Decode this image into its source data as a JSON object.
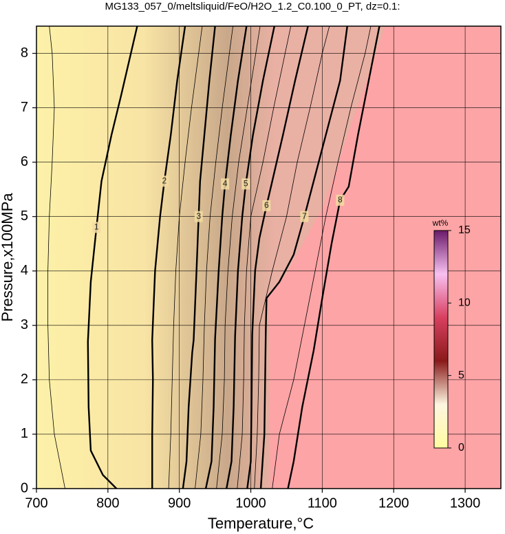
{
  "chart_data": {
    "type": "contour",
    "title": "MG133_057_0/meltsliquid/FeO/H2O_1.2_C0.100_0_PT, dz=0.1:",
    "x_label": "Temperature,°C",
    "y_label": "Pressure,x100MPa",
    "xlim": [
      700,
      1350
    ],
    "ylim": [
      0,
      8.5
    ],
    "xticks": [
      700,
      800,
      900,
      1000,
      1100,
      1200,
      1300
    ],
    "yticks": [
      0,
      1,
      2,
      3,
      4,
      5,
      6,
      7,
      8
    ],
    "grid": true,
    "line_color": "#000000",
    "contours": [
      {
        "level": 1,
        "x": [
          812,
          793,
          776,
          773,
          772,
          776,
          784,
          791,
          805,
          818,
          841
        ],
        "y": [
          0,
          0.25,
          0.7,
          1.5,
          2.7,
          3.8,
          4.8,
          5.65,
          6.5,
          7.2,
          8.5
        ]
      },
      {
        "level": 2,
        "x": [
          862,
          862,
          863,
          862,
          866,
          873,
          879,
          888,
          897,
          908
        ],
        "y": [
          0,
          1,
          2,
          2.73,
          4,
          5,
          5.65,
          6.5,
          7.5,
          8.5
        ]
      },
      {
        "level": 3,
        "x": [
          905,
          910,
          913,
          918,
          920,
          924,
          927,
          929,
          935,
          942,
          950
        ],
        "y": [
          0,
          0.5,
          1.5,
          2.5,
          2.73,
          4,
          5,
          5.65,
          6.5,
          7.5,
          8.5
        ]
      },
      {
        "level": 4,
        "x": [
          937,
          945,
          948,
          950,
          955,
          960,
          964,
          972,
          982,
          994
        ],
        "y": [
          0,
          0.5,
          1.5,
          2.75,
          4,
          5,
          5.6,
          6.5,
          7.5,
          8.5
        ]
      },
      {
        "level": 5,
        "x": [
          966,
          973,
          976,
          978,
          982,
          988,
          993,
          1003,
          1017,
          1033
        ],
        "y": [
          0,
          0.5,
          1.5,
          2.8,
          4,
          5,
          5.6,
          6.5,
          7.5,
          8.5
        ]
      },
      {
        "level": 6,
        "x": [
          995,
          1000,
          1001,
          1002,
          1006,
          1012,
          1022,
          1030,
          1045,
          1062,
          1080
        ],
        "y": [
          0,
          0.5,
          1.5,
          2.83,
          4,
          4.6,
          5.2,
          5.65,
          6.5,
          7.5,
          8.5
        ]
      },
      {
        "level": 7,
        "x": [
          1014,
          1019,
          1021,
          1022,
          1040,
          1060,
          1075,
          1086,
          1105,
          1125,
          1135
        ],
        "y": [
          0,
          1,
          2.92,
          3.5,
          3.8,
          4.3,
          5,
          5.55,
          6.5,
          7.5,
          8.5
        ]
      },
      {
        "level": 8,
        "x": [
          1052,
          1060,
          1072,
          1088,
          1100,
          1113,
          1125,
          1137,
          1150,
          1165,
          1180
        ],
        "y": [
          0,
          0.5,
          1.5,
          2.54,
          3.5,
          4.5,
          5.3,
          5.55,
          6.5,
          7.5,
          8.5
        ]
      }
    ],
    "minor_contours": [
      {
        "level": 1,
        "x": [
          740,
          725,
          718,
          716,
          716,
          718,
          722,
          725,
          722,
          718
        ],
        "y": [
          0,
          1,
          2,
          3,
          4,
          5,
          6,
          7,
          8,
          8.5
        ]
      },
      {
        "level": 2.5,
        "x": [
          885,
          888,
          890,
          892,
          895,
          900,
          908,
          917,
          927,
          932
        ],
        "y": [
          0,
          1,
          2,
          3,
          4,
          5,
          6,
          7,
          8,
          8.5
        ]
      },
      {
        "level": 3.5,
        "x": [
          922,
          930,
          933,
          935,
          938,
          943,
          951,
          960,
          970,
          975
        ],
        "y": [
          0,
          1,
          2,
          3,
          4,
          5,
          6,
          7,
          8,
          8.5
        ]
      },
      {
        "level": 4.5,
        "x": [
          952,
          960,
          963,
          964,
          968,
          974,
          983,
          995,
          1007,
          1013
        ],
        "y": [
          0,
          1,
          2,
          3,
          4,
          5,
          6,
          7,
          8,
          8.5
        ]
      },
      {
        "level": 5.5,
        "x": [
          981,
          988,
          990,
          991,
          994,
          1000,
          1017,
          1032,
          1048,
          1056
        ],
        "y": [
          0,
          1,
          2,
          3,
          4,
          5,
          6,
          7,
          8,
          8.5
        ]
      },
      {
        "level": 6.5,
        "x": [
          1005,
          1009,
          1011,
          1012,
          1030,
          1050,
          1065,
          1083,
          1100,
          1110
        ],
        "y": [
          0,
          1,
          2,
          3,
          4,
          5,
          6,
          7,
          8,
          8.5
        ]
      },
      {
        "level": 7.5,
        "x": [
          1030,
          1040,
          1060,
          1075,
          1090,
          1105,
          1122,
          1140,
          1160,
          1168
        ],
        "y": [
          0,
          1,
          2,
          3,
          4,
          5,
          6,
          7,
          8,
          8.5
        ]
      }
    ],
    "colorbar": {
      "label": "wt%",
      "lim": [
        0,
        15
      ],
      "ticks": [
        0,
        5,
        10,
        15
      ],
      "colors": [
        "#fffca0",
        "#fdf5e0",
        "#8a1a1a",
        "#d84060",
        "#f8c0f0",
        "#6a1a6a"
      ]
    }
  }
}
